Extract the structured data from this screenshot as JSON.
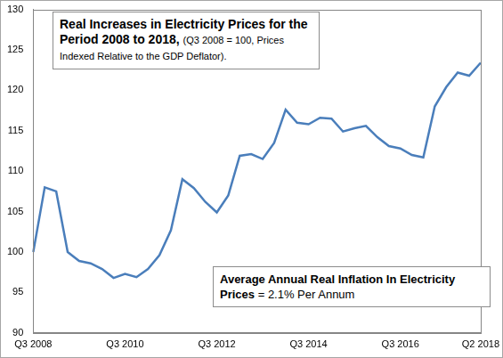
{
  "chart_data": {
    "type": "line",
    "title": "Real Increases in Electricity Prices for the Period 2008 to 2018,",
    "subtitle": "(Q3 2008 = 100, Prices Indexed Relative to the GDP Deflator).",
    "annotation": {
      "title": "Average Annual Real Inflation In Electricity Prices",
      "text": "= 2.1% Per Annum"
    },
    "categories": [
      "Q3 2008",
      null,
      null,
      null,
      null,
      null,
      null,
      null,
      "Q3 2010",
      null,
      null,
      null,
      null,
      null,
      null,
      null,
      "Q3 2012",
      null,
      null,
      null,
      null,
      null,
      null,
      null,
      "Q3 2014",
      null,
      null,
      null,
      null,
      null,
      null,
      null,
      "Q3 2016",
      null,
      null,
      null,
      null,
      null,
      null,
      "Q2 2018"
    ],
    "values": [
      100,
      108,
      107.5,
      100,
      98.9,
      98.6,
      97.9,
      96.8,
      97.3,
      96.9,
      97.9,
      99.6,
      102.7,
      109,
      107.9,
      106.2,
      104.9,
      107,
      111.9,
      112.1,
      111.5,
      113.5,
      117.6,
      116,
      115.8,
      116.6,
      116.5,
      114.9,
      115.3,
      115.6,
      114.2,
      113.1,
      112.8,
      112,
      111.7,
      118,
      120.4,
      122.2,
      121.8,
      123.4
    ],
    "color": "#4a7ebb",
    "ylim": [
      90,
      130
    ],
    "yticks": [
      90,
      95,
      100,
      105,
      110,
      115,
      120,
      125,
      130
    ],
    "grid": false
  }
}
